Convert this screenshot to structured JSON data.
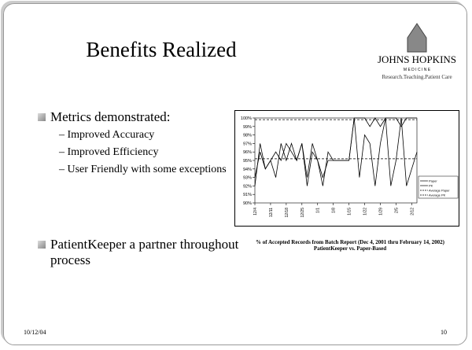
{
  "slide": {
    "title": "Benefits Realized",
    "logo": {
      "name": "JOHNS HOPKINS",
      "sub": "M E D I C I N E",
      "tagline": "Research.Teaching.Patient Care"
    },
    "bullets": [
      {
        "text": "Metrics demonstrated:",
        "items": [
          "Improved Accuracy",
          "Improved Efficiency",
          "User Friendly with some exceptions"
        ]
      },
      {
        "text": "PatientKeeper a partner throughout process"
      }
    ],
    "footer": {
      "date": "10/12/04",
      "page": "10"
    }
  },
  "chart_data": {
    "type": "line",
    "caption": "% of Accepted Records from Batch Report (Dec 4, 2001 thru February 14, 2002)",
    "subcaption": "PatientKeeper vs. Paper-Based",
    "categories": [
      "12/4",
      null,
      null,
      "12/11",
      null,
      null,
      "12/18",
      null,
      null,
      "12/25",
      null,
      null,
      "1/1",
      null,
      null,
      "1/8",
      null,
      null,
      "1/15",
      null,
      null,
      "1/22",
      null,
      null,
      "1/29",
      null,
      null,
      "2/5",
      null,
      null,
      "2/12",
      null
    ],
    "series": [
      {
        "name": "Paper",
        "color": "#000000",
        "dashed": false,
        "values": [
          92,
          97,
          94,
          95,
          93,
          97,
          95,
          97,
          95,
          97,
          92,
          96,
          95,
          92,
          96,
          95,
          95,
          95,
          95,
          100,
          93,
          98,
          97,
          92,
          97,
          100,
          92,
          95,
          100,
          92,
          94,
          96
        ]
      },
      {
        "name": "PK",
        "color": "#000000",
        "dashed": false,
        "values": [
          93,
          96,
          94,
          95,
          96,
          95,
          97,
          96,
          95,
          97,
          93,
          97,
          95,
          93,
          95,
          95,
          95,
          95,
          95,
          100,
          100,
          100,
          99,
          100,
          99,
          100,
          100,
          100,
          99,
          100,
          100,
          100
        ]
      },
      {
        "name": "Average Paper",
        "color": "#000000",
        "dashed": true,
        "values": [
          95.2,
          95.2,
          95.2,
          95.2,
          95.2,
          95.2,
          95.2,
          95.2,
          95.2,
          95.2,
          95.2,
          95.2,
          95.2,
          95.2,
          95.2,
          95.2,
          95.2,
          95.2,
          95.2,
          95.2,
          95.2,
          95.2,
          95.2,
          95.2,
          95.2,
          95.2,
          95.2,
          95.2,
          95.2,
          95.2,
          95.2,
          95.2
        ]
      },
      {
        "name": "Average PK",
        "color": "#000000",
        "dashed": true,
        "values": [
          99.8,
          99.8,
          99.8,
          99.8,
          99.8,
          99.8,
          99.8,
          99.8,
          99.8,
          99.8,
          99.8,
          99.8,
          99.8,
          99.8,
          99.8,
          99.8,
          99.8,
          99.8,
          99.8,
          99.8,
          99.8,
          99.8,
          99.8,
          99.8,
          99.8,
          99.8,
          99.8,
          99.8,
          99.8,
          99.8,
          99.8,
          99.8
        ]
      }
    ],
    "ylim": [
      90,
      100
    ],
    "yticks": [
      {
        "value": 90,
        "label": "90%"
      },
      {
        "value": 91,
        "label": "91%"
      },
      {
        "value": 92,
        "label": "92%"
      },
      {
        "value": 93,
        "label": "93%"
      },
      {
        "value": 94,
        "label": "94%"
      },
      {
        "value": 95,
        "label": "95%"
      },
      {
        "value": 96,
        "label": "96%"
      },
      {
        "value": 97,
        "label": "97%"
      },
      {
        "value": 98,
        "label": "98%"
      },
      {
        "value": 99,
        "label": "99%"
      },
      {
        "value": 100,
        "label": "100%"
      }
    ],
    "legend": "right"
  }
}
